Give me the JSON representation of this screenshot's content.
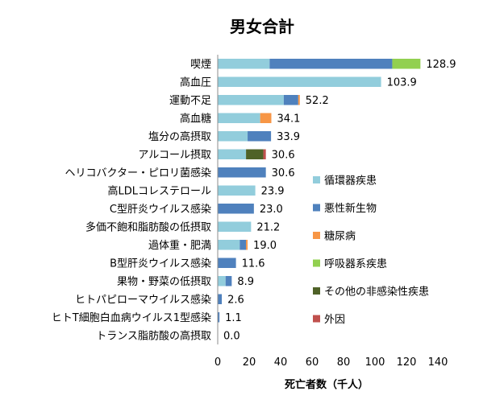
{
  "chart_data": {
    "type": "bar",
    "orientation": "horizontal",
    "stacked": true,
    "title": "男女合計",
    "xlabel": "死亡者数（千人）",
    "ylabel": "",
    "xlim": [
      0,
      140
    ],
    "x_ticks": [
      "0",
      "20",
      "40",
      "60",
      "80",
      "100",
      "120",
      "140"
    ],
    "grid": false,
    "legend_position": "right",
    "categories": [
      "喫煙",
      "高血圧",
      "運動不足",
      "高血糖",
      "塩分の高摂取",
      "アルコール摂取",
      "ヘリコバクター・ピロリ菌感染",
      "高LDLコレステロール",
      "C型肝炎ウイルス感染",
      "多価不飽和脂肪酸の低摂取",
      "過体重・肥満",
      "B型肝炎ウイルス感染",
      "果物・野菜の低摂取",
      "ヒトパピローマウイルス感染",
      "ヒトT細胞白血病ウイルス1型感染",
      "トランス脂肪酸の高摂取"
    ],
    "totals": [
      "128.9",
      "103.9",
      "52.2",
      "34.1",
      "33.9",
      "30.6",
      "30.6",
      "23.9",
      "23.0",
      "21.2",
      "19.0",
      "11.6",
      "8.9",
      "2.6",
      "1.1",
      "0.0"
    ],
    "series": [
      {
        "name": "循環器疾患",
        "color": "#92cddc",
        "values": [
          33.0,
          103.9,
          42.0,
          27.0,
          19.0,
          18.0,
          0,
          23.9,
          0,
          21.2,
          14.0,
          0,
          5.0,
          0,
          0,
          0
        ]
      },
      {
        "name": "悪性新生物",
        "color": "#4f81bd",
        "values": [
          78.0,
          0,
          9.2,
          0,
          14.9,
          0,
          30.6,
          0,
          23.0,
          0,
          4.0,
          11.6,
          3.9,
          2.6,
          1.1,
          0
        ]
      },
      {
        "name": "糖尿病",
        "color": "#f79646",
        "values": [
          0,
          0,
          1.0,
          7.1,
          0,
          0,
          0,
          0,
          0,
          0,
          1.0,
          0,
          0,
          0,
          0,
          0
        ]
      },
      {
        "name": "呼吸器系疾患",
        "color": "#92d050",
        "values": [
          17.9,
          0,
          0,
          0,
          0,
          0,
          0,
          0,
          0,
          0,
          0,
          0,
          0,
          0,
          0,
          0
        ]
      },
      {
        "name": "その他の非感染性疾患",
        "color": "#4f6228",
        "values": [
          0,
          0,
          0,
          0,
          0,
          11.0,
          0,
          0,
          0,
          0,
          0,
          0,
          0,
          0,
          0,
          0
        ]
      },
      {
        "name": "外因",
        "color": "#c0504d",
        "values": [
          0,
          0,
          0,
          0,
          0,
          1.6,
          0,
          0,
          0,
          0,
          0,
          0,
          0,
          0,
          0,
          0
        ]
      }
    ]
  }
}
